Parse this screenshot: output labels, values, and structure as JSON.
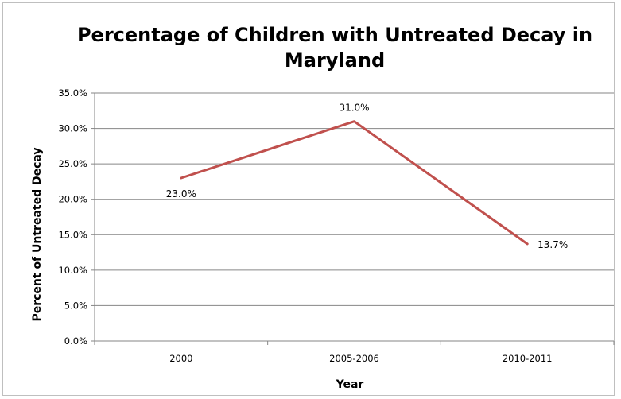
{
  "chart_data": {
    "type": "line",
    "title": "Percentage of Children with Untreated Decay in Maryland",
    "title_lines": [
      "Percentage of Children with Untreated Decay in",
      "Maryland"
    ],
    "xlabel": "Year",
    "ylabel": "Percent of Untreated Decay",
    "categories": [
      "2000",
      "2005-2006",
      "2010-2011"
    ],
    "series": [
      {
        "values": [
          23.0,
          31.0,
          13.7
        ],
        "data_labels": [
          "23.0%",
          "31.0%",
          "13.7%"
        ],
        "color": "#c0504d"
      }
    ],
    "ylim": [
      0,
      35
    ],
    "yticks": [
      0,
      5,
      10,
      15,
      20,
      25,
      30,
      35
    ],
    "ytick_labels": [
      "0.0%",
      "5.0%",
      "10.0%",
      "15.0%",
      "20.0%",
      "25.0%",
      "30.0%",
      "35.0%"
    ],
    "grid": true,
    "legend": "none",
    "grid_color": "#868686",
    "axis_color": "#868686"
  }
}
